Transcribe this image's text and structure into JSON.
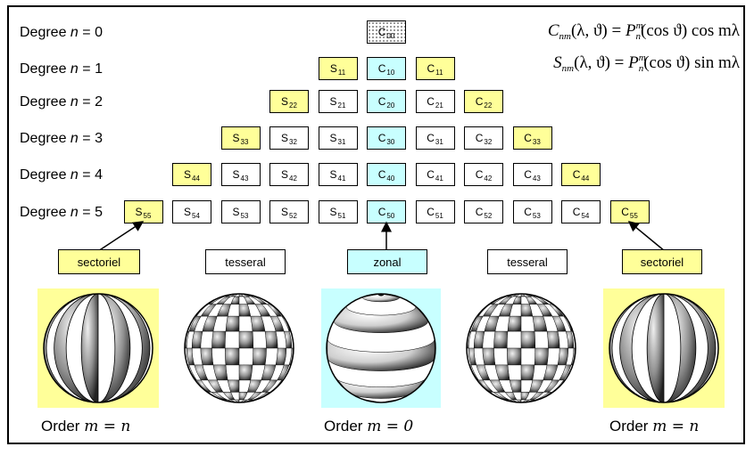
{
  "degree_labels": [
    {
      "prefix": "Degree ",
      "var": "n",
      "value": " = 0"
    },
    {
      "prefix": "Degree ",
      "var": "n",
      "value": " = 1"
    },
    {
      "prefix": "Degree ",
      "var": "n",
      "value": " = 2"
    },
    {
      "prefix": "Degree ",
      "var": "n",
      "value": " = 3"
    },
    {
      "prefix": "Degree ",
      "var": "n",
      "value": " = 4"
    },
    {
      "prefix": "Degree ",
      "var": "n",
      "value": " = 5"
    }
  ],
  "formulas": {
    "c": {
      "lhs": "C",
      "lhs_sub": "nm",
      "args": "(λ, ϑ) = ",
      "p": "P",
      "p_sup": "m",
      "p_sub": "n",
      "rhs": "(cos ϑ) cos mλ"
    },
    "s": {
      "lhs": "S",
      "lhs_sub": "nm",
      "args": "(λ, ϑ) = ",
      "p": "P",
      "p_sup": "m",
      "p_sub": "n",
      "rhs": "(cos ϑ) sin mλ"
    }
  },
  "categories": {
    "left": "sectoriel",
    "mid_left": "tesseral",
    "center": "zonal",
    "mid_right": "tesseral",
    "right": "sectoriel"
  },
  "order_labels": {
    "left": {
      "text": "Order ",
      "math": "m = n"
    },
    "center": {
      "text": "Order ",
      "math": "m = 0"
    },
    "right": {
      "text": "Order ",
      "math": "m = n"
    }
  },
  "colors": {
    "sectorial": "#ffff99",
    "zonal": "#c8ffff",
    "tesseral": "#ffffff"
  }
}
